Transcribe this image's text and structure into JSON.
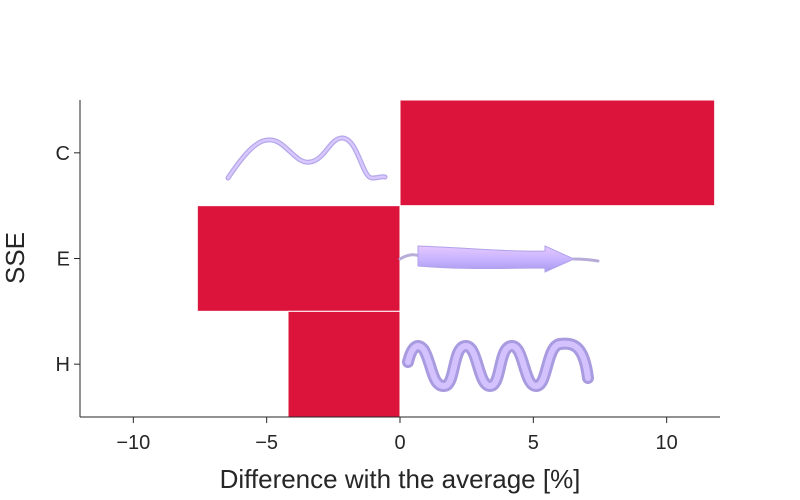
{
  "chart_data": {
    "type": "bar",
    "orientation": "horizontal",
    "title": "",
    "xlabel": "Difference with the average [%]",
    "ylabel": "SSE",
    "categories": [
      "C",
      "E",
      "H"
    ],
    "values": [
      11.8,
      -7.6,
      -4.2
    ],
    "xlim": [
      -12,
      12
    ],
    "xticks": [
      -10,
      -5,
      0,
      5,
      10
    ],
    "xtick_labels": [
      "−10",
      "−5",
      "0",
      "5",
      "10"
    ],
    "bar_color": "#dc143c",
    "grid": false,
    "legend": "none",
    "annotations": [
      {
        "category": "C",
        "icon": "coil-structure-icon"
      },
      {
        "category": "E",
        "icon": "beta-strand-arrow-icon"
      },
      {
        "category": "H",
        "icon": "alpha-helix-icon"
      }
    ],
    "icon_color": "#c9b8ff"
  }
}
